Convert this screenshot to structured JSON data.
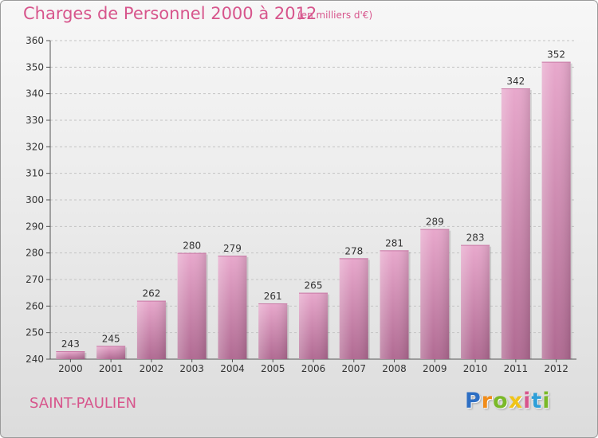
{
  "title": "Charges de Personnel 2000 à 2012",
  "subtitle": "(en milliers d'€)",
  "commune": "SAINT-PAULIEN",
  "logo": {
    "letters": [
      "P",
      "r",
      "o",
      "x",
      "i",
      "t",
      "i"
    ],
    "colors": [
      "#2e6fc4",
      "#f08c1a",
      "#7ab928",
      "#f0c419",
      "#d7558c",
      "#2e9fd8",
      "#7ab928"
    ]
  },
  "colors": {
    "accent": "#d7558c",
    "bar_light": "#e8a8cc",
    "bar_dark": "#b56e95"
  },
  "chart_data": {
    "type": "bar",
    "categories": [
      "2000",
      "2001",
      "2002",
      "2003",
      "2004",
      "2005",
      "2006",
      "2007",
      "2008",
      "2009",
      "2010",
      "2011",
      "2012"
    ],
    "values": [
      243,
      245,
      262,
      280,
      279,
      261,
      265,
      278,
      281,
      289,
      283,
      342,
      352
    ],
    "title": "Charges de Personnel 2000 à 2012",
    "ylim": [
      240,
      360
    ],
    "yticks": [
      240,
      250,
      260,
      270,
      280,
      290,
      300,
      310,
      320,
      330,
      340,
      350,
      360
    ],
    "grid": true,
    "data_labels": true
  }
}
